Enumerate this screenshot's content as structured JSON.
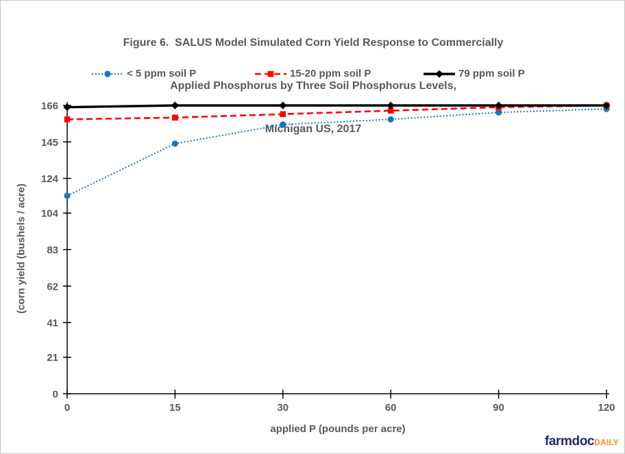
{
  "figure": {
    "title_lines": [
      "Figure 6.  SALUS Model Simulated Corn Yield Response to Commercially",
      "Applied Phosphorus by Three Soil Phosphorus Levels,",
      "Michigan US, 2017"
    ],
    "x_axis_label": "applied P (pounds per acre)",
    "y_axis_label": "(corn yield (bushels / acre)",
    "branding": {
      "name": "farmdoc",
      "suffix": "DAILY"
    }
  },
  "chart_data": {
    "type": "line",
    "title": "Figure 6. SALUS Model Simulated Corn Yield Response to Commercially Applied Phosphorus by Three Soil Phosphorus Levels, Michigan US, 2017",
    "x": [
      0,
      15,
      30,
      60,
      90,
      120
    ],
    "x_spacing": "categorical-equal",
    "xlabel": "applied P (pounds per acre)",
    "ylabel": "(corn yield (bushels / acre)",
    "ylim": [
      0,
      166
    ],
    "y_ticks": [
      0,
      21,
      41,
      62,
      83,
      104,
      124,
      145,
      166
    ],
    "grid": false,
    "legend_position": "top",
    "series": [
      {
        "name": "< 5 ppm soil P",
        "color": "#1B75BC",
        "line_style": "dotted",
        "marker": "circle",
        "values": [
          114,
          144,
          155,
          158,
          162,
          164
        ]
      },
      {
        "name": "15-20 ppm soil P",
        "color": "#FF0000",
        "line_style": "dashed",
        "marker": "square",
        "values": [
          158,
          159,
          161,
          163,
          165,
          166
        ]
      },
      {
        "name": "79 ppm soil P",
        "color": "#000000",
        "line_style": "solid",
        "marker": "diamond",
        "values": [
          165,
          166,
          166,
          166,
          166,
          166
        ]
      }
    ],
    "axis_color": "#000000",
    "tick_label_color": "#595959"
  }
}
